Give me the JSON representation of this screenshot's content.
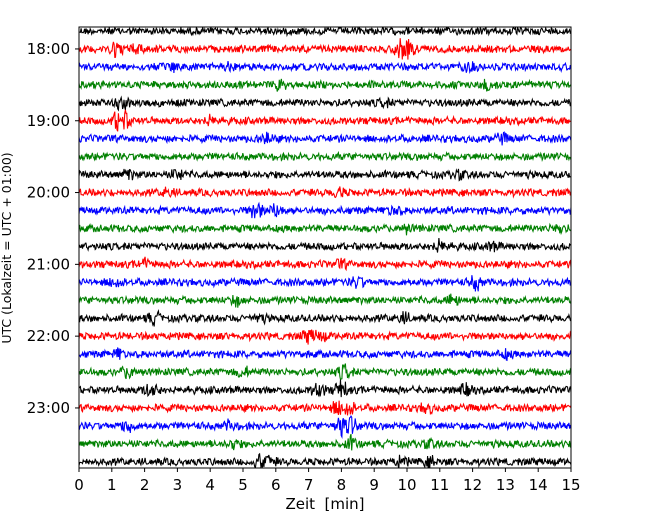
{
  "chart_data": {
    "type": "line",
    "subtype": "helicorder",
    "title": "",
    "xlabel": "Zeit  [min]",
    "ylabel": "UTC (Lokalzeit = UTC + 01:00)",
    "xlim": [
      0,
      15
    ],
    "x_ticks": [
      "0",
      "1",
      "2",
      "3",
      "4",
      "5",
      "6",
      "7",
      "8",
      "9",
      "10",
      "11",
      "12",
      "13",
      "14",
      "15"
    ],
    "y_ticks": [
      "18:00",
      "19:00",
      "20:00",
      "21:00",
      "22:00",
      "23:00"
    ],
    "trace_start_times": [
      "17:45",
      "18:00",
      "18:15",
      "18:30",
      "18:45",
      "19:00",
      "19:15",
      "19:30",
      "19:45",
      "20:00",
      "20:15",
      "20:30",
      "20:45",
      "21:00",
      "21:15",
      "21:30",
      "21:45",
      "22:00",
      "22:15",
      "22:30",
      "22:45",
      "23:00",
      "23:15",
      "23:30",
      "23:45"
    ],
    "trace_colors": [
      "#000000",
      "#ff0000",
      "#0000ff",
      "#008000"
    ],
    "bursts": [
      {
        "trace": 1,
        "x_min": [
          1.1,
          1.8,
          9.8,
          10.1
        ],
        "amp": [
          3.0,
          2.2,
          3.2,
          2.5
        ]
      },
      {
        "trace": 2,
        "x_min": [
          2.9,
          4.5,
          11.9
        ],
        "amp": [
          2.0,
          1.8,
          2.0
        ]
      },
      {
        "trace": 3,
        "x_min": [
          6.1,
          12.4
        ],
        "amp": [
          1.8,
          2.4
        ]
      },
      {
        "trace": 4,
        "x_min": [
          1.3,
          9.3
        ],
        "amp": [
          2.6,
          1.8
        ]
      },
      {
        "trace": 5,
        "x_min": [
          1.2,
          1.4,
          4.0
        ],
        "amp": [
          3.2,
          2.6,
          2.0
        ]
      },
      {
        "trace": 6,
        "x_min": [
          5.7,
          12.9
        ],
        "amp": [
          2.2,
          2.0
        ]
      },
      {
        "trace": 8,
        "x_min": [
          1.5,
          3.0,
          11.6
        ],
        "amp": [
          2.0,
          2.2,
          1.8
        ]
      },
      {
        "trace": 9,
        "x_min": [
          2.7,
          7.9
        ],
        "amp": [
          1.8,
          2.0
        ]
      },
      {
        "trace": 10,
        "x_min": [
          5.4,
          6.0,
          9.6
        ],
        "amp": [
          3.0,
          2.6,
          2.2
        ]
      },
      {
        "trace": 11,
        "x_min": [
          10.0,
          14.6
        ],
        "amp": [
          1.8,
          2.0
        ]
      },
      {
        "trace": 12,
        "x_min": [
          11.0,
          12.6
        ],
        "amp": [
          2.4,
          1.8
        ]
      },
      {
        "trace": 13,
        "x_min": [
          2.0,
          8.0
        ],
        "amp": [
          2.0,
          1.8
        ]
      },
      {
        "trace": 14,
        "x_min": [
          1.1,
          8.5,
          12.1
        ],
        "amp": [
          2.0,
          2.2,
          2.6
        ]
      },
      {
        "trace": 15,
        "x_min": [
          4.8,
          11.4
        ],
        "amp": [
          2.0,
          2.2
        ]
      },
      {
        "trace": 16,
        "x_min": [
          2.3,
          5.5,
          9.9
        ],
        "amp": [
          2.2,
          1.8,
          2.0
        ]
      },
      {
        "trace": 17,
        "x_min": [
          7.0,
          7.4
        ],
        "amp": [
          2.4,
          2.0
        ]
      },
      {
        "trace": 18,
        "x_min": [
          1.2,
          13.0
        ],
        "amp": [
          2.0,
          1.8
        ]
      },
      {
        "trace": 19,
        "x_min": [
          1.5,
          5.0,
          8.1
        ],
        "amp": [
          2.4,
          2.0,
          2.8
        ]
      },
      {
        "trace": 20,
        "x_min": [
          2.2,
          7.3,
          8.0,
          11.8
        ],
        "amp": [
          3.0,
          2.6,
          3.2,
          2.2
        ]
      },
      {
        "trace": 21,
        "x_min": [
          7.9,
          8.2,
          10.6
        ],
        "amp": [
          2.4,
          2.6,
          2.0
        ]
      },
      {
        "trace": 22,
        "x_min": [
          1.5,
          4.6,
          8.0,
          8.3
        ],
        "amp": [
          2.6,
          2.0,
          3.4,
          3.0
        ]
      },
      {
        "trace": 23,
        "x_min": [
          4.7,
          8.3,
          10.7
        ],
        "amp": [
          2.0,
          2.4,
          1.8
        ]
      },
      {
        "trace": 24,
        "x_min": [
          5.5,
          5.8,
          9.8,
          10.7
        ],
        "amp": [
          2.4,
          2.2,
          2.0,
          2.2
        ]
      }
    ]
  }
}
